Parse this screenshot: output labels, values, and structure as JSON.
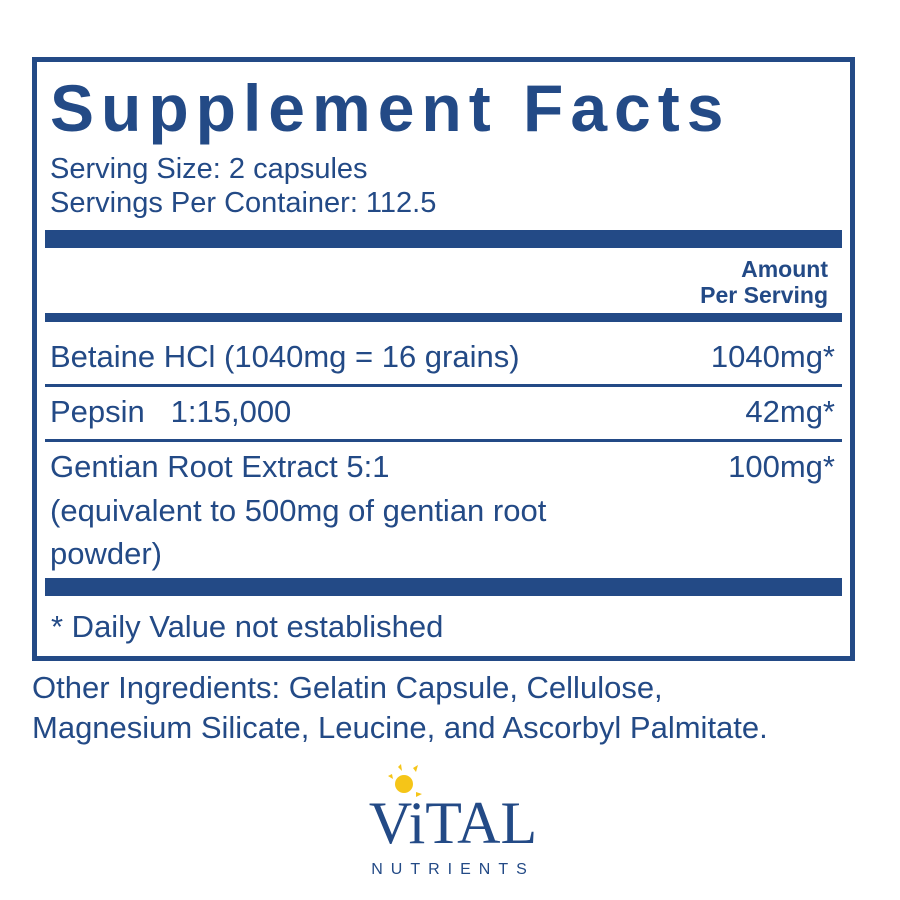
{
  "panel": {
    "title": "Supplement Facts",
    "serving_size": "Serving Size: 2 capsules",
    "servings_per_container": "Servings Per Container: 112.5",
    "column_header": {
      "line1": "Amount",
      "line2": "Per Serving"
    },
    "rows": [
      {
        "name": "Betaine HCl (1040mg = 16 grains)",
        "amount": "1040mg*"
      },
      {
        "name": "Pepsin   1:15,000",
        "amount": "42mg*"
      },
      {
        "name": "Gentian Root Extract 5:1",
        "name_line2": "(equivalent to 500mg of gentian root",
        "name_line3": "powder)",
        "amount": "100mg*"
      }
    ],
    "footnote": "* Daily Value not established"
  },
  "other_ingredients": {
    "line1": "Other Ingredients: Gelatin Capsule, Cellulose,",
    "line2": "Magnesium Silicate, Leucine, and Ascorbyl Palmitate."
  },
  "logo": {
    "word": "ViTAL",
    "sub": "NUTRIENTS",
    "icon": "sun-icon"
  },
  "colors": {
    "primary": "#234a86",
    "sun": "#f5c518"
  }
}
